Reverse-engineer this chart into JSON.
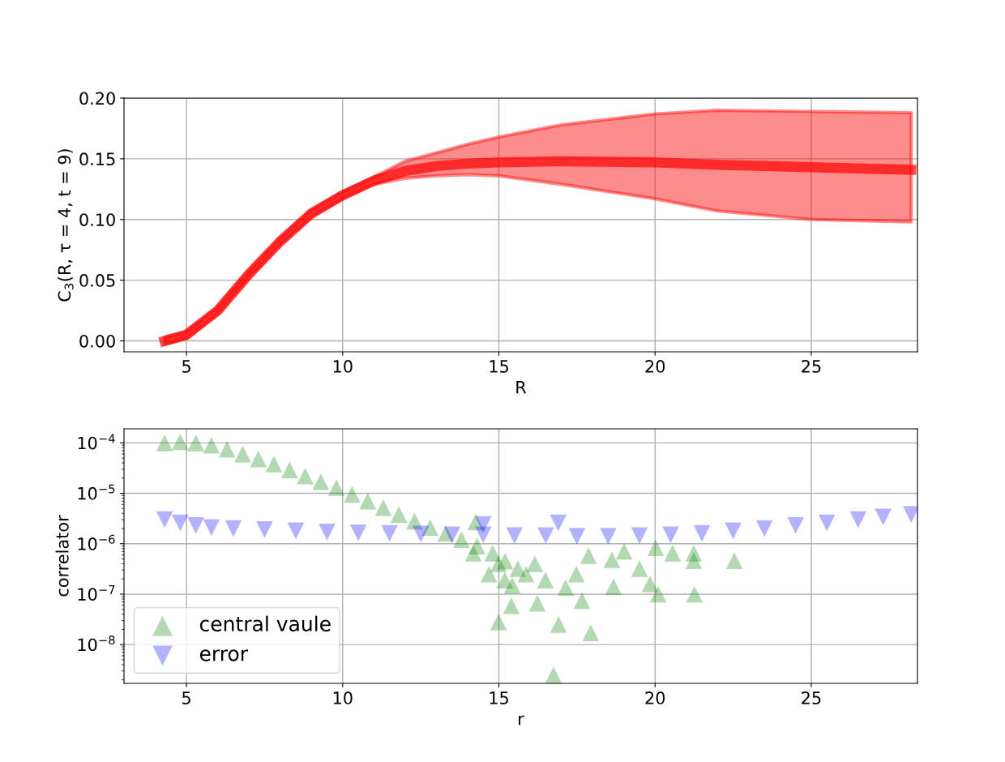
{
  "chart_data": [
    {
      "type": "line",
      "xlabel": "R",
      "ylabel": "C$_{3}$(R, τ = 4, t = 9)",
      "xlim": [
        3.0,
        28.4
      ],
      "xticks": [
        5,
        10,
        15,
        20,
        25
      ],
      "ylim": [
        -0.009,
        0.2
      ],
      "yticks": [
        {
          "value": 0,
          "label": "0.00"
        },
        {
          "value": 0.05,
          "label": "0.05"
        },
        {
          "value": 0.1,
          "label": "0.10"
        },
        {
          "value": 0.15,
          "label": "0.15"
        },
        {
          "value": 0.2,
          "label": "0.20"
        }
      ],
      "grid": true,
      "series": [
        {
          "color": "#ff0000",
          "x": [
            4.3,
            5,
            6,
            7,
            8,
            9,
            10,
            11,
            12,
            13,
            14,
            15,
            17,
            20,
            22,
            25,
            28.2
          ],
          "values": [
            0.0,
            0.005,
            0.025,
            0.055,
            0.082,
            0.105,
            0.12,
            0.132,
            0.14,
            0.144,
            0.146,
            0.147,
            0.148,
            0.147,
            0.145,
            0.143,
            0.141
          ],
          "lower": [
            -0.003,
            0.002,
            0.022,
            0.052,
            0.079,
            0.102,
            0.117,
            0.129,
            0.134,
            0.136,
            0.137,
            0.136,
            0.129,
            0.117,
            0.107,
            0.1,
            0.098
          ],
          "upper": [
            0.003,
            0.008,
            0.028,
            0.058,
            0.085,
            0.108,
            0.123,
            0.135,
            0.148,
            0.155,
            0.162,
            0.168,
            0.178,
            0.187,
            0.19,
            0.189,
            0.188
          ]
        }
      ]
    },
    {
      "type": "scatter",
      "xlabel": "r",
      "ylabel": "correlator",
      "log": "y",
      "xlim": [
        3.0,
        28.4
      ],
      "xticks": [
        5,
        10,
        15,
        20,
        25
      ],
      "ylim": [
        1.7e-09,
        0.00019
      ],
      "yticks": [
        {
          "value": 1e-08,
          "label": "10$^{−8}$"
        },
        {
          "value": 1e-07,
          "label": "10$^{−7}$"
        },
        {
          "value": 1e-06,
          "label": "10$^{−6}$"
        },
        {
          "value": 1e-05,
          "label": "10$^{−5}$"
        },
        {
          "value": 0.0001,
          "label": "10$^{−4}$"
        }
      ],
      "grid": true,
      "legend": "bottom left",
      "series": [
        {
          "name": "central vaule",
          "color": "#008000",
          "marker": "triangle",
          "x": [
            4.3,
            4.8,
            5.3,
            5.8,
            6.3,
            6.8,
            7.3,
            7.8,
            8.3,
            8.8,
            9.3,
            9.8,
            10.3,
            10.8,
            11.3,
            11.8,
            12.3,
            12.8,
            13.3,
            13.8,
            14.3,
            14.8,
            15.2,
            14.99,
            16.91,
            17.94,
            16.75,
            15.4,
            16.23,
            17.66,
            18.67,
            20.1,
            21.26,
            19.84,
            19.5,
            17.48,
            17.14,
            16.49,
            16.15,
            15.87,
            15.61,
            14.99,
            15.19,
            17.87,
            18.62,
            19.01,
            20.02,
            20.56,
            21.24,
            21.24,
            22.54,
            14.26,
            14.18,
            14.68,
            15.43
          ],
          "values": [
            0.0001,
            0.000105,
            0.0001,
            9e-05,
            7.5e-05,
            6e-05,
            4.8e-05,
            3.8e-05,
            2.9e-05,
            2.2e-05,
            1.7e-05,
            1.3e-05,
            9.5e-06,
            7e-06,
            5.2e-06,
            3.8e-06,
            2.8e-06,
            2.1e-06,
            1.6e-06,
            1.2e-06,
            9e-07,
            6.5e-07,
            4.5e-07,
            2.8e-08,
            2.5e-08,
            1.7e-08,
            2.5e-09,
            5.9e-08,
            6.6e-08,
            7.4e-08,
            1.4e-07,
            1e-07,
            1e-07,
            1.6e-07,
            3.2e-07,
            2.5e-07,
            1.35e-07,
            1.9e-07,
            4e-07,
            2.5e-07,
            3.2e-07,
            4e-07,
            1.9e-07,
            5.8e-07,
            4.8e-07,
            7.1e-07,
            8.3e-07,
            6.5e-07,
            6.5e-07,
            4.6e-07,
            4.6e-07,
            2.7e-06,
            6.5e-07,
            2.5e-07,
            1.5e-07
          ]
        },
        {
          "name": "error",
          "color": "#0000ff",
          "marker": "triangle_down",
          "x": [
            4.3,
            4.8,
            5.3,
            5.8,
            6.5,
            7.5,
            8.5,
            9.5,
            10.5,
            11.5,
            12.5,
            13.5,
            14.5,
            15.5,
            16.5,
            17.5,
            18.5,
            19.5,
            20.5,
            21.5,
            22.5,
            23.5,
            24.5,
            25.5,
            26.5,
            27.3,
            28.2,
            16.9,
            14.5
          ],
          "values": [
            3e-06,
            2.6e-06,
            2.3e-06,
            2.1e-06,
            2e-06,
            1.9e-06,
            1.8e-06,
            1.7e-06,
            1.65e-06,
            1.6e-06,
            1.55e-06,
            1.5e-06,
            1.5e-06,
            1.45e-06,
            1.45e-06,
            1.4e-06,
            1.4e-06,
            1.45e-06,
            1.5e-06,
            1.6e-06,
            1.8e-06,
            2e-06,
            2.3e-06,
            2.6e-06,
            3e-06,
            3.4e-06,
            3.8e-06,
            2.6e-06,
            2.4e-06
          ]
        }
      ]
    }
  ]
}
